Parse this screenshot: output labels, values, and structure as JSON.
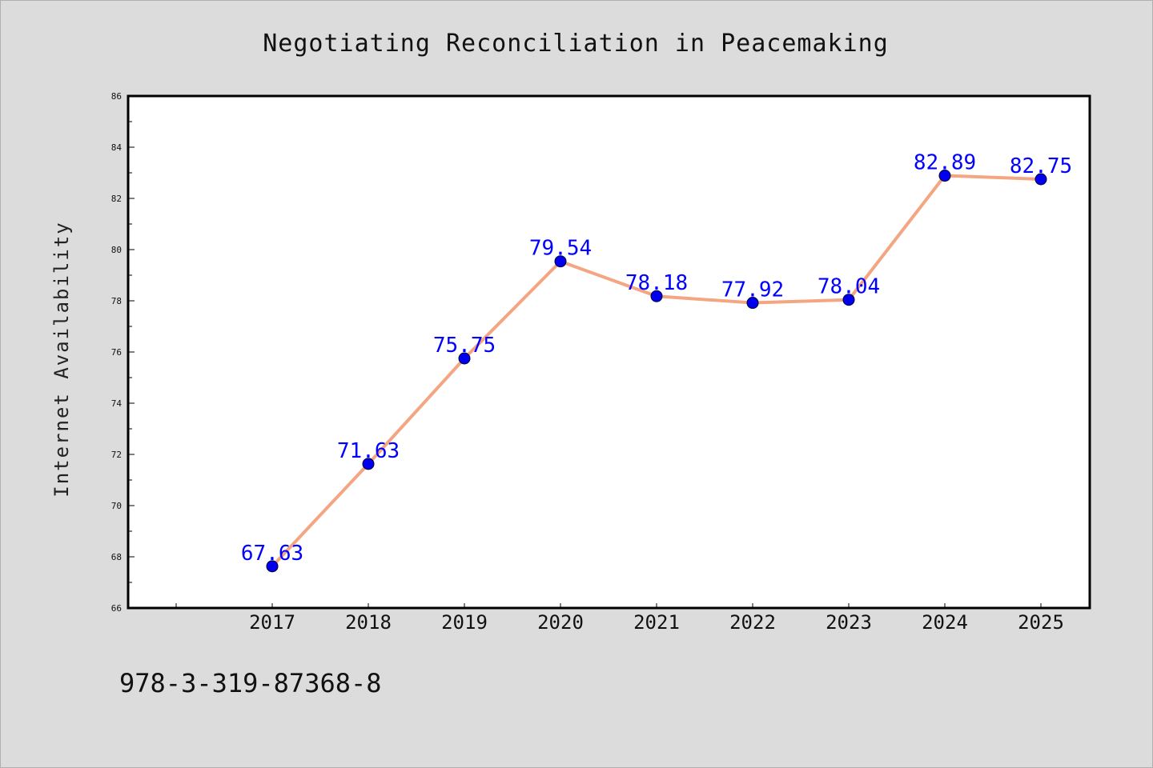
{
  "chart_data": {
    "type": "line",
    "title": "Negotiating Reconciliation in Peacemaking",
    "xlabel": "",
    "ylabel": "Internet Availability",
    "categories": [
      "2017",
      "2018",
      "2019",
      "2020",
      "2021",
      "2022",
      "2023",
      "2024",
      "2025"
    ],
    "series": [
      {
        "values": [
          67.63,
          71.63,
          75.75,
          79.54,
          78.18,
          77.92,
          78.04,
          82.89,
          82.75
        ],
        "labels": [
          "67.63",
          "71.63",
          "75.75",
          "79.54",
          "78.18",
          "77.92",
          "78.04",
          "82.89",
          "82.75"
        ]
      }
    ],
    "ylim": [
      66,
      86
    ],
    "yticks": [
      "66",
      "68",
      "70",
      "72",
      "74",
      "76",
      "78",
      "80",
      "82",
      "84",
      "86"
    ],
    "grid": false,
    "legend": "none",
    "colors": {
      "line": "#f4a582",
      "marker": "#0000ee",
      "data_label": "#0000ff",
      "plot_background": "#ffffff",
      "figure_background": "#dcdcdc"
    }
  },
  "footer": {
    "isbn": "978-3-319-87368-8"
  }
}
